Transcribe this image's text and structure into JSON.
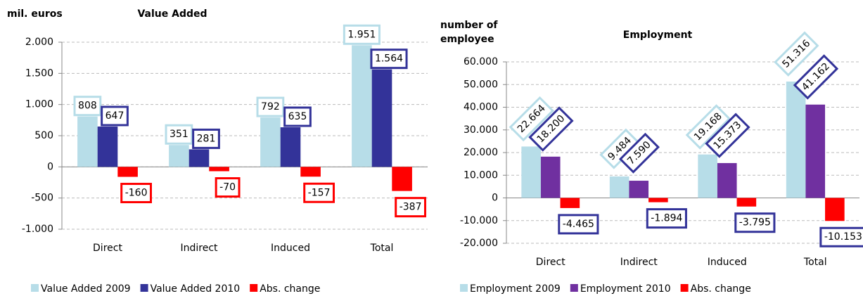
{
  "chart_data": [
    {
      "type": "bar",
      "title": "Value Added",
      "y_label": "mil. euros",
      "categories": [
        "Direct",
        "Indirect",
        "Induced",
        "Total"
      ],
      "series": [
        {
          "name": "Value Added  2009",
          "color": "#b7dde8",
          "label_color": "#b7dde8",
          "values": [
            808,
            351,
            792,
            1951
          ],
          "value_labels": [
            "808",
            "351",
            "792",
            "1.951"
          ]
        },
        {
          "name": "Value Added  2010",
          "color": "#333399",
          "label_color": "#333399",
          "values": [
            647,
            281,
            635,
            1564
          ],
          "value_labels": [
            "647",
            "281",
            "635",
            "1.564"
          ]
        },
        {
          "name": "Abs. change",
          "color": "#ff0000",
          "label_color": "#ff0000",
          "values": [
            -160,
            -70,
            -157,
            -387
          ]
        }
      ],
      "ylim": [
        -1000,
        2000
      ],
      "yticks": [
        {
          "value": -1000,
          "label": "-1.000"
        },
        -500,
        0,
        500,
        {
          "value": 1000,
          "label": "1.000"
        },
        {
          "value": 1500,
          "label": "1.500"
        },
        {
          "value": 2000,
          "label": "2.000"
        }
      ],
      "grid": true,
      "legend": "bottom"
    },
    {
      "type": "bar",
      "title": "Employment",
      "y_label": "number of employee",
      "categories": [
        "Direct",
        "Indirect",
        "Induced",
        "Total"
      ],
      "series": [
        {
          "name": "Employment 2009",
          "color": "#b7dde8",
          "label_color": "#b7dde8",
          "values": [
            22664,
            9484,
            19168,
            51316
          ],
          "value_labels": [
            "22.664",
            "9.484",
            "19.168",
            "51.316"
          ]
        },
        {
          "name": "Employment 2010",
          "color": "#7030a0",
          "label_color": "#333399",
          "values": [
            18200,
            7590,
            15373,
            41162
          ],
          "value_labels": [
            "18.200",
            "7.590",
            "15.373",
            "41.162"
          ]
        },
        {
          "name": "Abs. change",
          "color": "#ff0000",
          "label_color": "#333399",
          "values": [
            -4465,
            -1894,
            -3795,
            -10153
          ],
          "value_labels": [
            "-4.465",
            "-1.894",
            "-3.795",
            "-10.153"
          ]
        }
      ],
      "ylim": [
        -20000,
        60000
      ],
      "yticks": [
        {
          "value": -20000,
          "label": "-20.000"
        },
        {
          "value": -10000,
          "label": "-10.000"
        },
        0,
        {
          "value": 10000,
          "label": "10.000"
        },
        {
          "value": 20000,
          "label": "20.000"
        },
        {
          "value": 30000,
          "label": "30.000"
        },
        {
          "value": 40000,
          "label": "40.000"
        },
        {
          "value": 50000,
          "label": "50.000"
        },
        {
          "value": 60000,
          "label": "60.000"
        }
      ],
      "grid": true,
      "legend": "bottom"
    }
  ]
}
